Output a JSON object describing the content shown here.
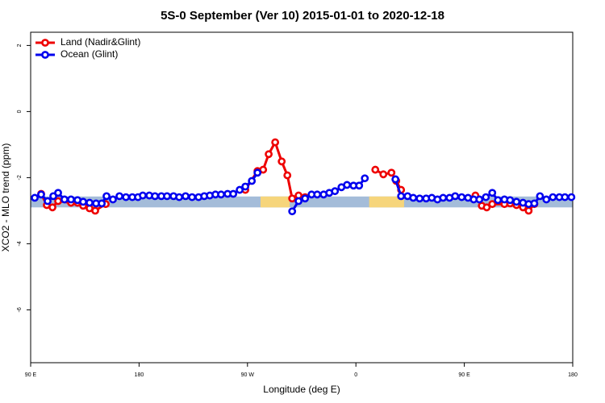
{
  "chart_data": {
    "type": "line",
    "title": "5S-0 September (Ver 10)   2015-01-01 to 2020-12-18",
    "xlabel": "Longitude (deg E)",
    "ylabel": "XCO2 - MLO trend (ppm)",
    "xlim": [
      90,
      540
    ],
    "xticks": [
      {
        "value": 90,
        "label": "90 E"
      },
      180,
      {
        "value": 270,
        "label": "90 W"
      },
      {
        "value": 360,
        "label": "0"
      },
      {
        "value": 450,
        "label": "90 E"
      },
      {
        "value": 540,
        "label": "180"
      }
    ],
    "ylim": [
      -7.6,
      2.4
    ],
    "yticks": [
      2,
      0,
      -2,
      -4,
      -6
    ],
    "legend": "top-left",
    "ocean_band": {
      "yrange": [
        -2.57,
        -2.9
      ],
      "color": "#a4bcd9"
    },
    "land_band": {
      "color": "#f6d57b",
      "xranges": [
        [
          280.8,
          305
        ],
        [
          371,
          400
        ]
      ]
    },
    "series": [
      {
        "name": "Land (Nadir&Glint)",
        "color": "#ee0000",
        "x": [
          98.7,
          103.4,
          108.1,
          112.8,
          123.5,
          128.9,
          133.6,
          138.9,
          143.6,
          152.3,
          null,
          268.2,
          278.3,
          283.0,
          287.6,
          293.0,
          298.4,
          303.1,
          307.1,
          312.4,
          317.8,
          null,
          376.1,
          382.8,
          389.5,
          393.5,
          397.5,
          null,
          459.2,
          464.5,
          468.6,
          473.2,
          483.3,
          488.0,
          493.3,
          498.7,
          503.4,
          508.1
        ],
        "values": [
          -2.49,
          -2.83,
          -2.9,
          -2.71,
          -2.76,
          -2.76,
          -2.85,
          -2.93,
          -3.0,
          -2.8,
          null,
          -2.37,
          -1.8,
          -1.76,
          -1.29,
          -0.93,
          -1.51,
          -1.93,
          -2.63,
          -2.54,
          -2.59,
          null,
          -1.76,
          -1.9,
          -1.85,
          -2.1,
          -2.37,
          null,
          -2.54,
          -2.85,
          -2.9,
          -2.8,
          -2.8,
          -2.78,
          -2.83,
          -2.9,
          -3.0,
          -2.8
        ]
      },
      {
        "name": "Ocean (Glint)",
        "color": "#0000ee",
        "x": [
          93.4,
          98.7,
          104.1,
          108.8,
          112.8,
          118.1,
          123.5,
          128.9,
          133.6,
          138.9,
          144.3,
          149.0,
          153.0,
          158.3,
          163.7,
          169.1,
          174.4,
          179.1,
          183.1,
          188.5,
          193.2,
          198.5,
          203.2,
          208.6,
          213.3,
          218.6,
          224.0,
          229.4,
          234.1,
          238.7,
          243.4,
          248.1,
          253.5,
          258.2,
          263.5,
          268.2,
          273.6,
          278.3,
          null,
          307.1,
          312.4,
          317.8,
          323.2,
          327.9,
          333.2,
          337.9,
          342.6,
          348.0,
          352.6,
          358.0,
          362.7,
          367.4,
          null,
          392.8,
          397.5,
          402.9,
          407.6,
          412.9,
          418.3,
          423.0,
          427.7,
          432.4,
          437.7,
          442.4,
          447.8,
          453.1,
          457.8,
          462.5,
          467.9,
          473.2,
          477.9,
          483.3,
          488.0,
          493.3,
          498.7,
          503.4,
          508.1,
          512.8,
          518.1,
          523.5,
          528.9,
          533.5,
          538.9
        ],
        "values": [
          -2.61,
          -2.51,
          -2.71,
          -2.56,
          -2.46,
          -2.66,
          -2.66,
          -2.68,
          -2.73,
          -2.76,
          -2.78,
          -2.78,
          -2.56,
          -2.66,
          -2.56,
          -2.59,
          -2.59,
          -2.59,
          -2.54,
          -2.54,
          -2.56,
          -2.56,
          -2.56,
          -2.56,
          -2.59,
          -2.56,
          -2.59,
          -2.59,
          -2.56,
          -2.54,
          -2.51,
          -2.51,
          -2.49,
          -2.49,
          -2.37,
          -2.27,
          -2.1,
          -1.85,
          null,
          -3.02,
          -2.71,
          -2.63,
          -2.51,
          -2.51,
          -2.51,
          -2.46,
          -2.41,
          -2.29,
          -2.22,
          -2.24,
          -2.24,
          -2.02,
          null,
          -2.05,
          -2.56,
          -2.56,
          -2.61,
          -2.63,
          -2.63,
          -2.61,
          -2.66,
          -2.61,
          -2.61,
          -2.56,
          -2.59,
          -2.61,
          -2.66,
          -2.66,
          -2.59,
          -2.46,
          -2.68,
          -2.66,
          -2.68,
          -2.73,
          -2.76,
          -2.8,
          -2.78,
          -2.56,
          -2.66,
          -2.59,
          -2.59,
          -2.59,
          -2.59
        ]
      }
    ]
  }
}
